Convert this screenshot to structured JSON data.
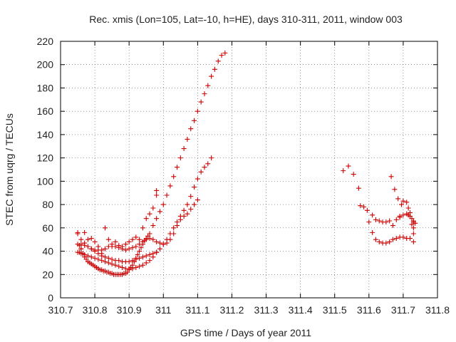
{
  "chart_data": {
    "type": "scatter",
    "title": "Rec. xmis (Lon=105, Lat=-10, h=HE), days 310-311, 2011, window 003",
    "xlabel": "GPS time / Days of year 2011",
    "ylabel": "STEC from uqrg / TECUs",
    "xlim": [
      310.7,
      311.8
    ],
    "ylim": [
      0,
      220
    ],
    "xticks": [
      310.7,
      310.8,
      310.9,
      311.0,
      311.1,
      311.2,
      311.3,
      311.4,
      311.5,
      311.6,
      311.7,
      311.8
    ],
    "xtick_labels": [
      "310.7",
      "310.8",
      "310.9",
      "311",
      "311.1",
      "311.2",
      "311.3",
      "311.4",
      "311.5",
      "311.6",
      "311.7",
      "311.8"
    ],
    "yticks": [
      0,
      20,
      40,
      60,
      80,
      100,
      120,
      140,
      160,
      180,
      200,
      220
    ],
    "ytick_labels": [
      "0",
      "20",
      "40",
      "60",
      "80",
      "100",
      "120",
      "140",
      "160",
      "180",
      "200",
      "220"
    ],
    "grid": true,
    "marker": "+",
    "color": "#cc0000",
    "series": [
      {
        "points": [
          [
            310.75,
            56
          ],
          [
            310.755,
            45
          ],
          [
            310.76,
            42
          ],
          [
            310.765,
            38
          ],
          [
            310.77,
            35
          ],
          [
            310.775,
            33
          ],
          [
            310.78,
            31
          ],
          [
            310.785,
            30
          ],
          [
            310.79,
            29
          ],
          [
            310.795,
            28
          ],
          [
            310.8,
            27
          ],
          [
            310.805,
            26
          ],
          [
            310.81,
            25
          ],
          [
            310.815,
            24
          ],
          [
            310.82,
            24
          ],
          [
            310.825,
            23
          ],
          [
            310.83,
            23
          ],
          [
            310.835,
            22
          ],
          [
            310.84,
            22
          ],
          [
            310.845,
            21
          ],
          [
            310.85,
            21
          ],
          [
            310.855,
            20
          ],
          [
            310.86,
            20
          ],
          [
            310.865,
            20
          ],
          [
            310.87,
            20
          ],
          [
            310.875,
            20
          ],
          [
            310.88,
            20
          ],
          [
            310.885,
            21
          ],
          [
            310.89,
            21
          ],
          [
            310.895,
            22
          ],
          [
            310.9,
            24
          ],
          [
            310.905,
            26
          ],
          [
            310.91,
            28
          ],
          [
            310.915,
            31
          ],
          [
            310.92,
            34
          ],
          [
            310.925,
            37
          ],
          [
            310.93,
            40
          ],
          [
            310.935,
            43
          ],
          [
            310.94,
            46
          ],
          [
            310.945,
            49
          ],
          [
            310.95,
            51
          ],
          [
            310.955,
            53
          ],
          [
            310.96,
            55
          ],
          [
            310.97,
            62
          ],
          [
            310.98,
            68
          ],
          [
            310.99,
            74
          ],
          [
            311.0,
            80
          ],
          [
            311.01,
            88
          ],
          [
            311.02,
            96
          ],
          [
            311.03,
            104
          ],
          [
            311.04,
            112
          ],
          [
            311.05,
            120
          ],
          [
            311.06,
            128
          ],
          [
            311.07,
            136
          ],
          [
            311.08,
            145
          ],
          [
            311.09,
            152
          ],
          [
            311.1,
            160
          ],
          [
            311.11,
            168
          ],
          [
            311.12,
            175
          ],
          [
            311.13,
            182
          ],
          [
            311.14,
            190
          ],
          [
            311.15,
            196
          ],
          [
            311.16,
            203
          ],
          [
            311.17,
            208
          ],
          [
            311.18,
            210
          ]
        ]
      },
      {
        "points": [
          [
            310.75,
            46
          ],
          [
            310.76,
            46
          ],
          [
            310.77,
            45
          ],
          [
            310.78,
            44
          ],
          [
            310.79,
            42
          ],
          [
            310.8,
            41
          ],
          [
            310.81,
            41
          ],
          [
            310.82,
            41
          ],
          [
            310.83,
            42
          ],
          [
            310.84,
            44
          ],
          [
            310.85,
            44
          ],
          [
            310.86,
            44
          ],
          [
            310.87,
            43
          ],
          [
            310.88,
            42
          ],
          [
            310.89,
            41
          ],
          [
            310.9,
            42
          ],
          [
            310.91,
            43
          ],
          [
            310.92,
            44
          ],
          [
            310.93,
            46
          ],
          [
            310.94,
            48
          ],
          [
            310.95,
            50
          ],
          [
            310.96,
            51
          ],
          [
            310.97,
            50
          ],
          [
            310.98,
            48
          ],
          [
            310.99,
            47
          ],
          [
            311.0,
            46
          ],
          [
            311.01,
            47
          ],
          [
            311.02,
            50
          ],
          [
            311.03,
            55
          ],
          [
            311.04,
            62
          ],
          [
            311.05,
            67
          ],
          [
            311.06,
            70
          ],
          [
            311.07,
            72
          ],
          [
            311.08,
            76
          ],
          [
            311.09,
            80
          ],
          [
            311.1,
            84
          ]
        ]
      },
      {
        "points": [
          [
            310.75,
            39
          ],
          [
            310.755,
            39
          ],
          [
            310.76,
            38
          ],
          [
            310.765,
            38
          ],
          [
            310.77,
            37
          ],
          [
            310.78,
            36
          ],
          [
            310.79,
            35
          ],
          [
            310.8,
            34
          ],
          [
            310.81,
            33
          ],
          [
            310.82,
            32
          ],
          [
            310.83,
            31
          ],
          [
            310.84,
            30
          ],
          [
            310.85,
            29
          ],
          [
            310.86,
            28
          ],
          [
            310.87,
            27
          ],
          [
            310.88,
            26
          ],
          [
            310.89,
            25
          ],
          [
            310.9,
            25
          ],
          [
            310.91,
            25
          ],
          [
            310.92,
            26
          ],
          [
            310.93,
            27
          ],
          [
            310.94,
            28
          ],
          [
            310.95,
            30
          ],
          [
            310.96,
            32
          ],
          [
            310.97,
            35
          ],
          [
            310.98,
            39
          ],
          [
            310.99,
            42
          ],
          [
            311.0,
            46
          ],
          [
            311.01,
            50
          ],
          [
            311.02,
            55
          ],
          [
            311.03,
            60
          ],
          [
            311.04,
            65
          ],
          [
            311.05,
            70
          ],
          [
            311.06,
            75
          ],
          [
            311.07,
            80
          ],
          [
            311.08,
            87
          ],
          [
            311.09,
            95
          ],
          [
            311.1,
            102
          ],
          [
            311.11,
            108
          ],
          [
            311.12,
            112
          ],
          [
            311.13,
            115
          ],
          [
            311.14,
            120
          ]
        ]
      },
      {
        "points": [
          [
            310.75,
            55
          ],
          [
            310.76,
            50
          ],
          [
            310.77,
            47
          ],
          [
            310.78,
            44
          ],
          [
            310.79,
            42
          ],
          [
            310.8,
            40
          ],
          [
            310.81,
            38
          ],
          [
            310.82,
            36
          ],
          [
            310.83,
            35
          ],
          [
            310.84,
            34
          ],
          [
            310.85,
            33
          ],
          [
            310.86,
            32
          ],
          [
            310.87,
            32
          ],
          [
            310.88,
            31
          ],
          [
            310.89,
            31
          ],
          [
            310.9,
            31
          ],
          [
            310.91,
            32
          ],
          [
            310.92,
            33
          ],
          [
            310.93,
            34
          ],
          [
            310.94,
            35
          ],
          [
            310.95,
            36
          ],
          [
            310.96,
            37
          ],
          [
            310.97,
            38
          ],
          [
            310.98,
            39
          ]
        ]
      },
      {
        "points": [
          [
            310.76,
            42
          ],
          [
            310.77,
            56
          ],
          [
            310.78,
            50
          ],
          [
            310.79,
            51
          ],
          [
            310.8,
            48
          ],
          [
            310.81,
            44
          ],
          [
            310.82,
            38
          ],
          [
            310.83,
            60
          ],
          [
            310.84,
            50
          ],
          [
            310.85,
            46
          ],
          [
            310.86,
            48
          ],
          [
            310.87,
            45
          ],
          [
            310.88,
            44
          ],
          [
            310.89,
            46
          ],
          [
            310.9,
            48
          ],
          [
            310.91,
            50
          ],
          [
            310.92,
            52
          ],
          [
            310.93,
            50
          ],
          [
            310.94,
            60
          ],
          [
            310.95,
            68
          ],
          [
            310.96,
            72
          ],
          [
            310.97,
            77
          ],
          [
            310.98,
            88
          ],
          [
            310.98,
            92
          ]
        ]
      },
      {
        "points": [
          [
            311.525,
            109
          ],
          [
            311.54,
            113
          ],
          [
            311.555,
            106
          ],
          [
            311.57,
            94
          ],
          [
            311.575,
            79
          ],
          [
            311.585,
            78
          ],
          [
            311.595,
            75
          ],
          [
            311.6,
            65
          ],
          [
            311.61,
            71
          ],
          [
            311.62,
            67
          ],
          [
            311.63,
            66
          ],
          [
            311.64,
            65
          ],
          [
            311.65,
            65
          ],
          [
            311.66,
            66
          ],
          [
            311.665,
            104
          ],
          [
            311.675,
            93
          ],
          [
            311.685,
            85
          ],
          [
            311.69,
            70
          ],
          [
            311.695,
            80
          ],
          [
            311.7,
            83
          ],
          [
            311.71,
            82
          ],
          [
            311.715,
            77
          ],
          [
            311.72,
            73
          ],
          [
            311.725,
            68
          ],
          [
            311.73,
            66
          ],
          [
            311.73,
            65
          ],
          [
            311.735,
            64
          ]
        ]
      },
      {
        "points": [
          [
            311.61,
            56
          ],
          [
            311.62,
            50
          ],
          [
            311.63,
            48
          ],
          [
            311.64,
            47
          ],
          [
            311.65,
            47
          ],
          [
            311.66,
            48
          ],
          [
            311.67,
            50
          ],
          [
            311.68,
            51
          ],
          [
            311.69,
            52
          ],
          [
            311.7,
            52
          ],
          [
            311.71,
            51
          ],
          [
            311.72,
            51
          ],
          [
            311.73,
            48
          ]
        ]
      },
      {
        "points": [
          [
            311.67,
            62
          ],
          [
            311.68,
            67
          ],
          [
            311.69,
            69
          ],
          [
            311.7,
            71
          ],
          [
            311.71,
            72
          ],
          [
            311.715,
            71
          ],
          [
            311.72,
            70
          ],
          [
            311.725,
            63
          ],
          [
            311.73,
            60
          ],
          [
            311.73,
            55
          ]
        ]
      }
    ]
  }
}
